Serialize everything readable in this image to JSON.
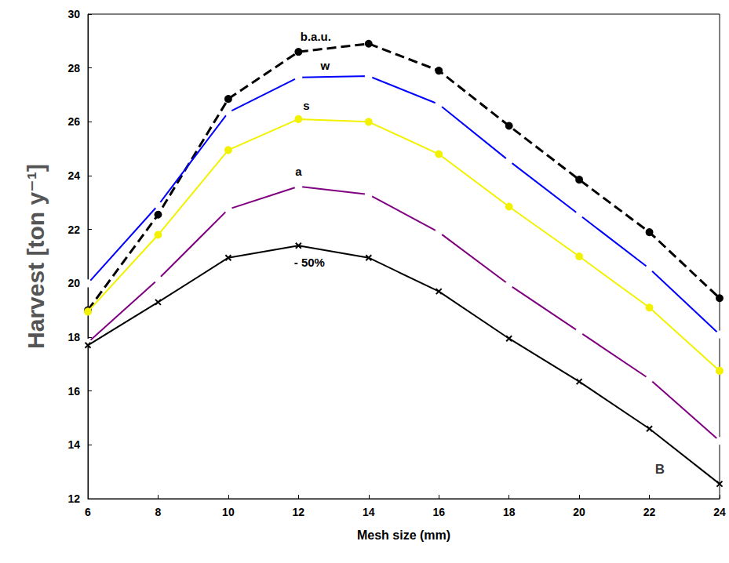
{
  "chart_data": {
    "type": "line",
    "x_label": "Mesh size (mm)",
    "y_label": "Harvest [ton y⁻¹]",
    "x": [
      6,
      8,
      10,
      12,
      14,
      16,
      18,
      20,
      22,
      24
    ],
    "xlim": [
      6,
      24
    ],
    "xticks": [
      6,
      8,
      10,
      12,
      14,
      16,
      18,
      20,
      22,
      24
    ],
    "ylim": [
      12,
      30
    ],
    "yticks": [
      12,
      14,
      16,
      18,
      20,
      22,
      24,
      26,
      28,
      30
    ],
    "grid": false,
    "series": [
      {
        "name": "b.a.u.",
        "color": "#000000",
        "marker": "circle",
        "line_style": "dashed",
        "values": [
          19.0,
          22.55,
          26.85,
          28.6,
          28.9,
          27.9,
          25.85,
          23.85,
          21.9,
          19.45
        ]
      },
      {
        "name": "w",
        "color": "#0000ff",
        "marker": "open_circle",
        "line_style": "solid",
        "values": [
          20.0,
          22.9,
          26.35,
          27.65,
          27.7,
          26.65,
          24.55,
          22.55,
          20.55,
          18.1
        ]
      },
      {
        "name": "s",
        "color": "#f2f200",
        "marker": "circle",
        "line_style": "solid",
        "values": [
          18.95,
          21.8,
          24.95,
          26.1,
          26.0,
          24.8,
          22.85,
          21.0,
          19.1,
          16.75
        ]
      },
      {
        "name": "a",
        "color": "#800080",
        "marker": "open_circle",
        "line_style": "solid",
        "values": [
          17.8,
          20.15,
          22.75,
          23.6,
          23.3,
          21.9,
          19.95,
          18.2,
          16.45,
          14.15
        ]
      },
      {
        "name": "- 50%",
        "color": "#000000",
        "marker": "x",
        "line_style": "solid",
        "values": [
          17.7,
          19.3,
          20.95,
          21.4,
          20.95,
          19.7,
          17.95,
          16.35,
          14.6,
          12.55
        ]
      }
    ],
    "annotations": [
      {
        "text": "B",
        "x": 22.3,
        "y": 13.1
      }
    ]
  }
}
